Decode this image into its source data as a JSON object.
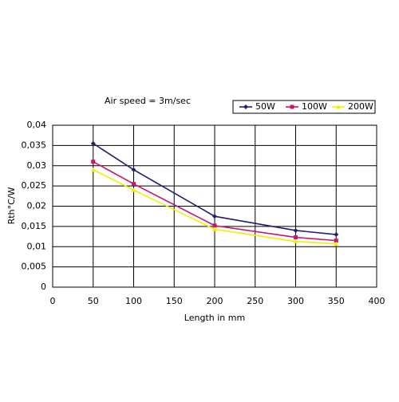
{
  "chart_data": {
    "type": "line",
    "title": "Air speed = 3m/sec",
    "x_label": "Length in mm",
    "y_label": "Rth°C/W",
    "x": [
      50,
      100,
      200,
      300,
      350
    ],
    "series": [
      {
        "name": "50W",
        "color": "#1f1f78",
        "values": [
          0.0355,
          0.029,
          0.0175,
          0.014,
          0.013
        ]
      },
      {
        "name": "100W",
        "color": "#c8146c",
        "values": [
          0.031,
          0.0255,
          0.0152,
          0.0123,
          0.0115
        ]
      },
      {
        "name": "200W",
        "color": "#f2ee00",
        "values": [
          0.029,
          0.024,
          0.0143,
          0.0113,
          0.0107
        ]
      }
    ],
    "xlim": [
      0,
      400
    ],
    "xticks": [
      0,
      50,
      100,
      150,
      200,
      250,
      300,
      350,
      400
    ],
    "ylim": [
      0,
      0.04
    ],
    "yticks": [
      0,
      {
        "value": 0.005,
        "label": "0,005"
      },
      {
        "value": 0.01,
        "label": "0,01"
      },
      {
        "value": 0.015,
        "label": "0,015"
      },
      {
        "value": 0.02,
        "label": "0,02"
      },
      {
        "value": 0.025,
        "label": "0,025"
      },
      {
        "value": 0.03,
        "label": "0,03"
      },
      {
        "value": 0.035,
        "label": "0,035"
      },
      {
        "value": 0.04,
        "label": "0,04"
      }
    ],
    "grid": true
  }
}
